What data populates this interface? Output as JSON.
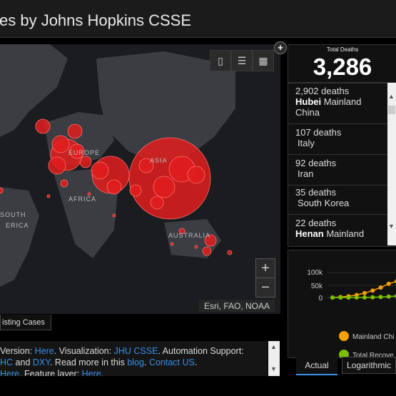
{
  "header": {
    "title": "es by Johns Hopkins CSSE"
  },
  "map": {
    "attribution": "Esri, FAO, NOAA",
    "labels": {
      "europe": "EUROPE",
      "africa": "AFRICA",
      "asia": "ASIA",
      "south_america_1": "SOUTH",
      "south_america_2": "ERICA",
      "australia": "AUSTRALIA"
    },
    "zoom_in": "+",
    "zoom_out": "−",
    "bubble_color": "#e21d1d",
    "tab_label": "isting Cases"
  },
  "footer": {
    "l1_a": "Version: ",
    "l1_link1": "Here",
    "l1_b": ". Visualization: ",
    "l1_link2": "JHU CSSE",
    "l1_c": ". Automation Support:",
    "l2_link1": "HC",
    "l2_a": " and ",
    "l2_link2": "DXY",
    "l2_b": ". Read more in this ",
    "l2_link3": "blog",
    "l2_c": ". ",
    "l2_link4": "Contact US",
    "l2_d": ".",
    "l3_link1": "Here",
    "l3_a": ". Feature layer: ",
    "l3_link2": "Here",
    "l3_b": "."
  },
  "deaths": {
    "label": "Total Deaths",
    "value": "3,286"
  },
  "death_list": [
    {
      "count": "2,902 deaths",
      "name_bold": "Hubei",
      "name_rest": " Mainland",
      "country": "China"
    },
    {
      "count": "107 deaths",
      "name_bold": "",
      "name_rest": "",
      "country": "Italy"
    },
    {
      "count": "92 deaths",
      "name_bold": "",
      "name_rest": "",
      "country": "Iran"
    },
    {
      "count": "35 deaths",
      "name_bold": "",
      "name_rest": "",
      "country": "South Korea"
    },
    {
      "count": "22 deaths",
      "name_bold": "Henan",
      "name_rest": " Mainland",
      "country": ""
    }
  ],
  "chart_data": {
    "type": "line",
    "y_ticks": [
      "100k",
      "50k",
      "0"
    ],
    "ylim": [
      0,
      100000
    ],
    "series": [
      {
        "name": "Mainland Chi",
        "color": "#f5a000",
        "values": [
          0,
          2000,
          5000,
          10000,
          18000,
          28000,
          40000,
          55000,
          65000
        ]
      },
      {
        "name": "Total Recove",
        "color": "#7ac000",
        "values": [
          0,
          0,
          0,
          200,
          500,
          1000,
          2000,
          4000,
          6000
        ]
      }
    ]
  },
  "tabs": {
    "actual": "Actual",
    "log": "Logarithmic"
  }
}
